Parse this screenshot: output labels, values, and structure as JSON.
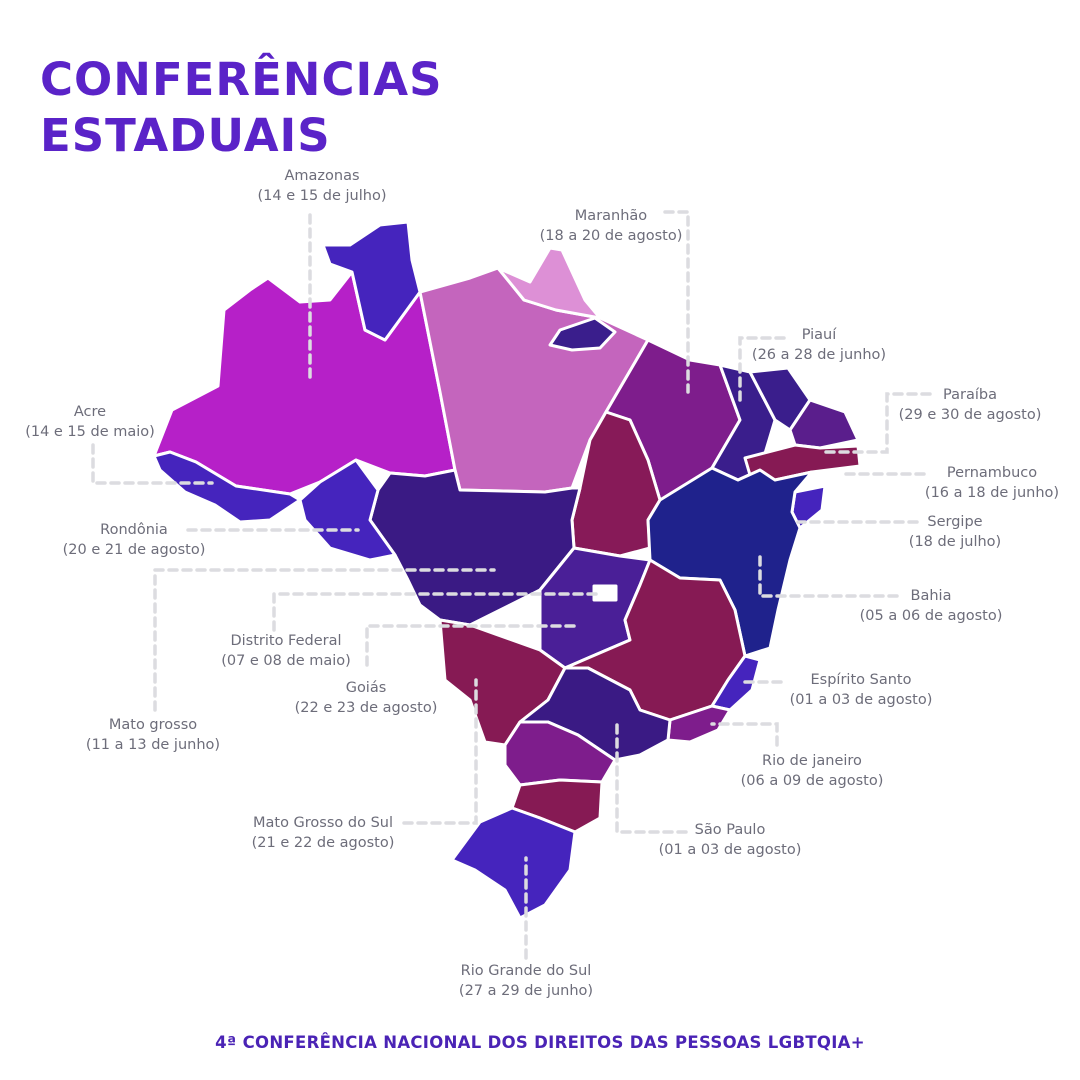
{
  "title": {
    "line1": "CONFERÊNCIAS",
    "line2": "ESTADUAIS"
  },
  "footer": "4ª CONFERÊNCIA NACIONAL DOS DIREITOS DAS PESSOAS LGBTQIA+",
  "colors": {
    "title": "#5a23c8",
    "footer": "#4a23b5",
    "label": "#6d6d7a",
    "leader": "#dcdce0",
    "regions": {
      "amazonas": "#b620c8",
      "para": "#c465bd",
      "amapa": "#4524bd",
      "roraima_amapa_blue": "#4524bd",
      "maranhao": "#7e1d8c",
      "piaui": "#871a58",
      "ceara": "#3a1e8c",
      "bahia": "#1f228c",
      "mato_grosso": "#3a1a84",
      "goias": "#4a1f97",
      "minas_gerais": "#861a54",
      "mato_grosso_sul": "#861a54",
      "sao_paulo": "#3a1a84",
      "parana": "#7e1d8c",
      "santa_catarina": "#861a54",
      "rio_grande_do_sul": "#4524bd",
      "light_pink": "#dd90d6"
    }
  },
  "labels": [
    {
      "id": "amazonas",
      "name": "Amazonas",
      "date": "(14 e 15 de julho)"
    },
    {
      "id": "maranhao",
      "name": "Maranhão",
      "date": "(18 a 20 de agosto)"
    },
    {
      "id": "piaui",
      "name": "Piauí",
      "date": "(26 a 28 de junho)"
    },
    {
      "id": "paraiba",
      "name": "Paraíba",
      "date": "(29 e 30 de agosto)"
    },
    {
      "id": "acre",
      "name": "Acre",
      "date": "(14 e 15 de maio)"
    },
    {
      "id": "pernambuco",
      "name": "Pernambuco",
      "date": "(16 a 18 de junho)"
    },
    {
      "id": "rondonia",
      "name": "Rondônia",
      "date": "(20 e 21 de agosto)"
    },
    {
      "id": "sergipe",
      "name": "Sergipe",
      "date": "(18 de julho)"
    },
    {
      "id": "bahia",
      "name": "Bahia",
      "date": "(05 a 06 de agosto)"
    },
    {
      "id": "distrito_federal",
      "name": "Distrito Federal",
      "date": "(07 e 08 de maio)"
    },
    {
      "id": "goias",
      "name": "Goiás",
      "date": "(22 e 23 de agosto)"
    },
    {
      "id": "espirito_santo",
      "name": "Espírito Santo",
      "date": "(01 a 03 de agosto)"
    },
    {
      "id": "mato_grosso",
      "name": "Mato grosso",
      "date": "(11 a 13 de junho)"
    },
    {
      "id": "rio_de_janeiro",
      "name": "Rio de janeiro",
      "date": "(06 a 09 de agosto)"
    },
    {
      "id": "mato_grosso_do_sul",
      "name": "Mato Grosso do Sul",
      "date": "(21 e 22 de agosto)"
    },
    {
      "id": "sao_paulo",
      "name": "São Paulo",
      "date": "(01 a 03 de agosto)"
    },
    {
      "id": "rio_grande_do_sul",
      "name": "Rio Grande do Sul",
      "date": "(27 a 29 de junho)"
    }
  ]
}
